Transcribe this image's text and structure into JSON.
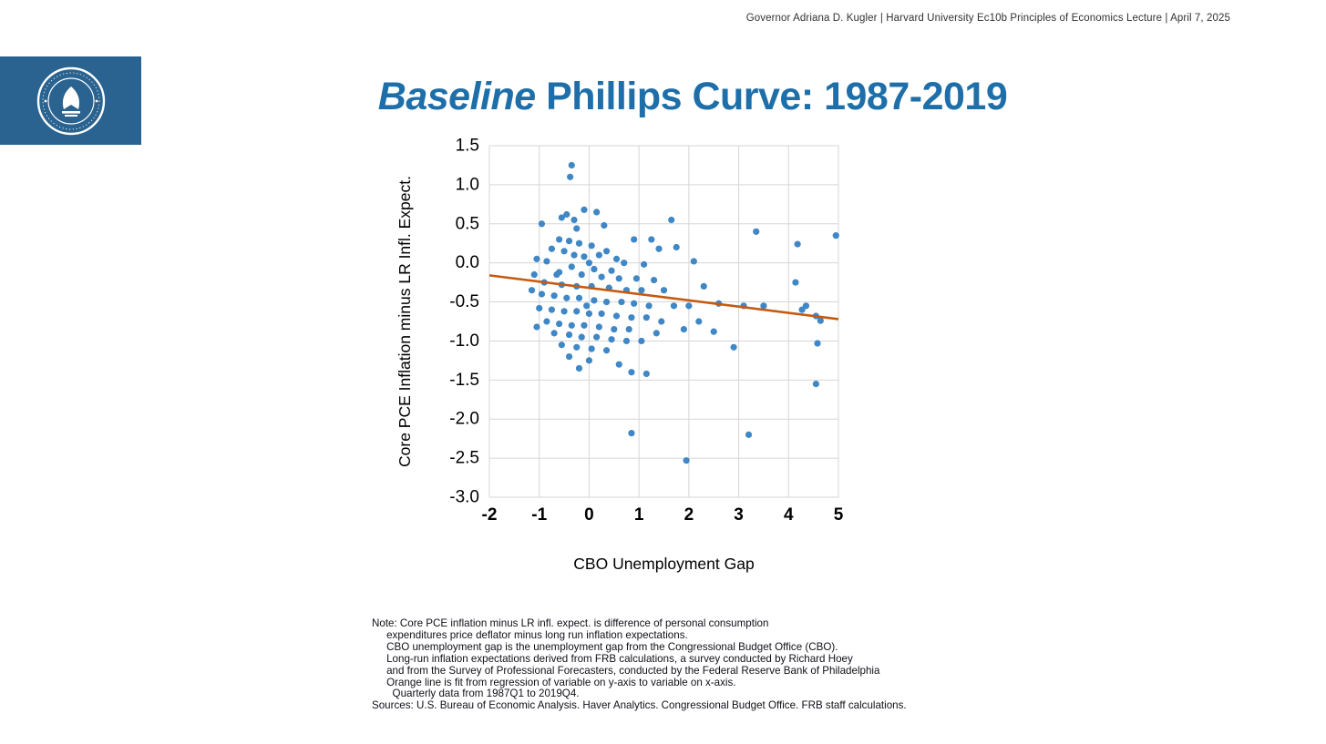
{
  "header": {
    "credit": "Governor Adriana D. Kugler | Harvard University Ec10b Principles of Economics Lecture | April 7, 2025"
  },
  "logo": {
    "name": "Board of Governors of the Federal Reserve System seal",
    "bg_color": "#2a6390"
  },
  "title": {
    "baseline": "Baseline",
    "rest": " Phillips Curve: 1987-2019",
    "color": "#1e6fa9"
  },
  "chart_data": {
    "type": "scatter",
    "title": "",
    "xlabel": "CBO Unemployment Gap",
    "ylabel": "Core PCE Inflation minus LR Infl. Expect.",
    "xlim": [
      -2,
      5
    ],
    "ylim": [
      -3.0,
      1.5
    ],
    "x_ticks": [
      -2,
      -1,
      0,
      1,
      2,
      3,
      4,
      5
    ],
    "y_ticks": [
      1.5,
      1.0,
      0.5,
      0.0,
      -0.5,
      -1.0,
      -1.5,
      -2.0,
      -2.5,
      -3.0
    ],
    "grid": true,
    "grid_color": "#d6d6d6",
    "point_color": "#3f87c5",
    "point_radius": 3.6,
    "trendline": {
      "x": [
        -2,
        5
      ],
      "y": [
        -0.16,
        -0.72
      ],
      "color": "#c55a11",
      "width": 2.6
    },
    "points": [
      [
        -0.35,
        1.25
      ],
      [
        -0.38,
        1.1
      ],
      [
        -0.1,
        0.68
      ],
      [
        0.15,
        0.65
      ],
      [
        -0.45,
        0.62
      ],
      [
        -0.55,
        0.58
      ],
      [
        -0.3,
        0.55
      ],
      [
        -0.95,
        0.5
      ],
      [
        0.3,
        0.48
      ],
      [
        -0.25,
        0.44
      ],
      [
        1.65,
        0.55
      ],
      [
        3.35,
        0.4
      ],
      [
        4.95,
        0.35
      ],
      [
        4.18,
        0.24
      ],
      [
        1.25,
        0.3
      ],
      [
        0.9,
        0.3
      ],
      [
        1.4,
        0.18
      ],
      [
        1.75,
        0.2
      ],
      [
        -0.6,
        0.3
      ],
      [
        -0.4,
        0.28
      ],
      [
        -0.2,
        0.25
      ],
      [
        0.05,
        0.22
      ],
      [
        -0.75,
        0.18
      ],
      [
        -0.5,
        0.15
      ],
      [
        0.35,
        0.15
      ],
      [
        0.2,
        0.1
      ],
      [
        -0.3,
        0.1
      ],
      [
        -0.1,
        0.08
      ],
      [
        0.55,
        0.05
      ],
      [
        -1.05,
        0.05
      ],
      [
        -0.85,
        0.02
      ],
      [
        0.0,
        0.0
      ],
      [
        0.7,
        0.0
      ],
      [
        1.1,
        -0.02
      ],
      [
        2.1,
        0.02
      ],
      [
        -0.35,
        -0.05
      ],
      [
        0.1,
        -0.08
      ],
      [
        0.45,
        -0.1
      ],
      [
        -0.6,
        -0.12
      ],
      [
        -0.65,
        -0.15
      ],
      [
        -1.1,
        -0.15
      ],
      [
        -0.15,
        -0.15
      ],
      [
        0.25,
        -0.18
      ],
      [
        0.6,
        -0.2
      ],
      [
        0.95,
        -0.2
      ],
      [
        1.3,
        -0.22
      ],
      [
        -0.9,
        -0.25
      ],
      [
        -0.55,
        -0.28
      ],
      [
        -0.25,
        -0.3
      ],
      [
        0.05,
        -0.3
      ],
      [
        0.4,
        -0.32
      ],
      [
        0.75,
        -0.35
      ],
      [
        1.05,
        -0.35
      ],
      [
        1.5,
        -0.35
      ],
      [
        2.3,
        -0.3
      ],
      [
        4.14,
        -0.25
      ],
      [
        -1.15,
        -0.35
      ],
      [
        -0.95,
        -0.4
      ],
      [
        -0.7,
        -0.42
      ],
      [
        -0.45,
        -0.45
      ],
      [
        -0.2,
        -0.45
      ],
      [
        0.1,
        -0.48
      ],
      [
        0.35,
        -0.5
      ],
      [
        0.65,
        -0.5
      ],
      [
        0.9,
        -0.52
      ],
      [
        1.2,
        -0.55
      ],
      [
        1.7,
        -0.55
      ],
      [
        2.0,
        -0.55
      ],
      [
        2.6,
        -0.52
      ],
      [
        3.1,
        -0.55
      ],
      [
        3.5,
        -0.55
      ],
      [
        4.35,
        -0.55
      ],
      [
        -0.05,
        -0.55
      ],
      [
        -1.0,
        -0.58
      ],
      [
        -0.75,
        -0.6
      ],
      [
        -0.5,
        -0.62
      ],
      [
        -0.25,
        -0.62
      ],
      [
        0.0,
        -0.65
      ],
      [
        0.25,
        -0.65
      ],
      [
        0.55,
        -0.68
      ],
      [
        0.85,
        -0.7
      ],
      [
        1.15,
        -0.7
      ],
      [
        4.55,
        -0.68
      ],
      [
        4.27,
        -0.6
      ],
      [
        -0.85,
        -0.75
      ],
      [
        -0.6,
        -0.78
      ],
      [
        -0.35,
        -0.8
      ],
      [
        -0.1,
        -0.8
      ],
      [
        0.2,
        -0.82
      ],
      [
        0.5,
        -0.85
      ],
      [
        0.8,
        -0.85
      ],
      [
        1.45,
        -0.75
      ],
      [
        1.9,
        -0.85
      ],
      [
        2.2,
        -0.75
      ],
      [
        2.5,
        -0.88
      ],
      [
        4.64,
        -0.74
      ],
      [
        -1.05,
        -0.82
      ],
      [
        -0.7,
        -0.9
      ],
      [
        -0.4,
        -0.92
      ],
      [
        -0.15,
        -0.95
      ],
      [
        0.15,
        -0.95
      ],
      [
        0.45,
        -0.98
      ],
      [
        0.75,
        -1.0
      ],
      [
        1.05,
        -1.0
      ],
      [
        1.35,
        -0.9
      ],
      [
        -0.55,
        -1.05
      ],
      [
        -0.25,
        -1.08
      ],
      [
        0.05,
        -1.1
      ],
      [
        0.35,
        -1.12
      ],
      [
        2.9,
        -1.08
      ],
      [
        4.58,
        -1.03
      ],
      [
        -0.4,
        -1.2
      ],
      [
        0.0,
        -1.25
      ],
      [
        0.6,
        -1.3
      ],
      [
        -0.2,
        -1.35
      ],
      [
        0.85,
        -1.4
      ],
      [
        1.15,
        -1.42
      ],
      [
        4.55,
        -1.55
      ],
      [
        0.85,
        -2.18
      ],
      [
        1.95,
        -2.53
      ],
      [
        3.2,
        -2.2
      ]
    ]
  },
  "notes": {
    "lines": [
      "Note: Core PCE inflation minus LR infl. expect. is difference of personal consumption",
      "     expenditures price deflator minus long run inflation expectations.",
      "     CBO unemployment gap is the unemployment gap from the Congressional Budget Office (CBO).",
      "     Long-run inflation expectations derived from FRB calculations, a survey conducted by Richard Hoey",
      "     and from the Survey of Professional Forecasters, conducted by the Federal Reserve Bank of Philadelphia",
      "     Orange line is fit from regression of variable on y-axis to variable on x-axis.",
      "       Quarterly data from 1987Q1 to 2019Q4.",
      "Sources: U.S. Bureau of Economic Analysis. Haver Analytics. Congressional Budget Office. FRB staff calculations."
    ]
  }
}
